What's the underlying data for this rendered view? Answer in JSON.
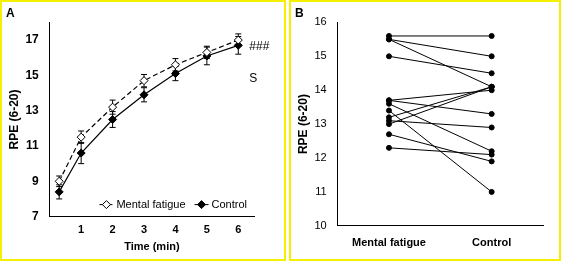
{
  "chart_data": [
    {
      "type": "line",
      "title": "A",
      "x": [
        0.3,
        1,
        2,
        3,
        4,
        5,
        6
      ],
      "series": [
        {
          "name": "Mental fatigue",
          "color": "#000000",
          "marker": "diamond_open",
          "line_style": "dashed",
          "values": [
            9.0,
            11.5,
            13.2,
            14.7,
            15.6,
            16.3,
            17.0
          ],
          "errors": [
            0.3,
            0.35,
            0.4,
            0.35,
            0.35,
            0.35,
            0.35
          ]
        },
        {
          "name": "Control",
          "color": "#000000",
          "marker": "diamond",
          "line_style": "solid",
          "values": [
            8.4,
            10.6,
            12.5,
            13.9,
            15.1,
            16.1,
            16.7
          ],
          "errors": [
            0.4,
            0.6,
            0.45,
            0.4,
            0.4,
            0.5,
            0.5
          ]
        }
      ],
      "x_label": "Time (min)",
      "y_label": "RPE (6-20)",
      "xlim": [
        0,
        6.5
      ],
      "xticks": [
        1,
        2,
        3,
        4,
        5,
        6
      ],
      "ylim": [
        7,
        18
      ],
      "yticks": [
        7,
        9,
        11,
        13,
        15,
        17
      ],
      "grid": false,
      "legend": "lower right",
      "annotations": [
        {
          "text": "###",
          "x": 6.35,
          "y": 16.6
        },
        {
          "text": "S",
          "x": 6.35,
          "y": 14.8
        }
      ]
    },
    {
      "type": "line",
      "title": "B",
      "categories": [
        "Mental fatigue",
        "Control"
      ],
      "series": [
        {
          "color": "#000000",
          "values": [
            15.6,
            15.6
          ]
        },
        {
          "color": "#000000",
          "values": [
            15.5,
            15.0
          ]
        },
        {
          "color": "#000000",
          "values": [
            15.5,
            14.1
          ]
        },
        {
          "color": "#000000",
          "values": [
            15.0,
            14.5
          ]
        },
        {
          "color": "#000000",
          "values": [
            13.7,
            14.0
          ]
        },
        {
          "color": "#000000",
          "values": [
            13.7,
            13.3
          ]
        },
        {
          "color": "#000000",
          "values": [
            13.6,
            12.2
          ]
        },
        {
          "color": "#000000",
          "values": [
            13.4,
            11.0
          ]
        },
        {
          "color": "#000000",
          "values": [
            13.2,
            14.1
          ]
        },
        {
          "color": "#000000",
          "values": [
            13.1,
            12.9
          ]
        },
        {
          "color": "#000000",
          "values": [
            13.0,
            14.1
          ]
        },
        {
          "color": "#000000",
          "values": [
            12.7,
            11.9
          ]
        },
        {
          "color": "#000000",
          "values": [
            12.3,
            12.1
          ]
        }
      ],
      "y_label": "RPE (6-20)",
      "ylim": [
        10,
        16
      ],
      "yticks": [
        10,
        11,
        12,
        13,
        14,
        15,
        16
      ],
      "grid": false,
      "marker": "circle"
    }
  ]
}
